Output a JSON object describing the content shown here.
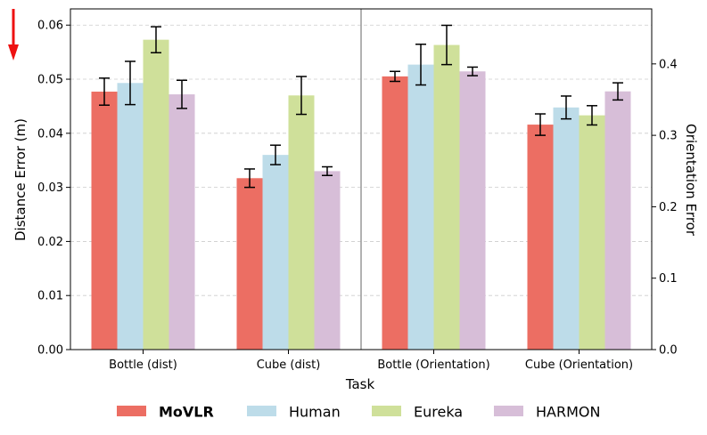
{
  "chart_data": {
    "type": "bar",
    "xlabel": "Task",
    "ylabel_left": "Distance Error (m)",
    "ylabel_right": "Orientation Error",
    "categories": [
      "Bottle (dist)",
      "Cube (dist)",
      "Bottle (Orientation)",
      "Cube (Orientation)"
    ],
    "category_axis": [
      "left",
      "left",
      "right",
      "right"
    ],
    "ylim_left": [
      0,
      0.063
    ],
    "ylim_right": [
      0,
      0.477
    ],
    "yticks_left": [
      "0.00",
      "0.01",
      "0.02",
      "0.03",
      "0.04",
      "0.05",
      "0.06"
    ],
    "yticks_right": [
      "0.0",
      "0.1",
      "0.2",
      "0.3",
      "0.4"
    ],
    "grid": "horizontal dashed",
    "annotation": "lower is better (red down arrow)",
    "legend_position": "bottom",
    "series": [
      {
        "name": "MoVLR",
        "color": "#ec6e63",
        "bold": true,
        "values": [
          0.0477,
          0.0317,
          0.3825,
          0.315
        ],
        "errors": [
          0.0025,
          0.0017,
          0.007,
          0.015
        ]
      },
      {
        "name": "Human",
        "color": "#bddce9",
        "bold": false,
        "values": [
          0.0493,
          0.036,
          0.399,
          0.339
        ],
        "errors": [
          0.004,
          0.0018,
          0.0285,
          0.016
        ]
      },
      {
        "name": "Eureka",
        "color": "#cfe09a",
        "bold": false,
        "values": [
          0.0573,
          0.047,
          0.4265,
          0.328
        ],
        "errors": [
          0.0024,
          0.0035,
          0.0275,
          0.0135
        ]
      },
      {
        "name": "HARMON",
        "color": "#d7bed8",
        "bold": false,
        "values": [
          0.0472,
          0.033,
          0.3895,
          0.3615
        ],
        "errors": [
          0.0026,
          0.0008,
          0.006,
          0.012
        ]
      }
    ]
  }
}
